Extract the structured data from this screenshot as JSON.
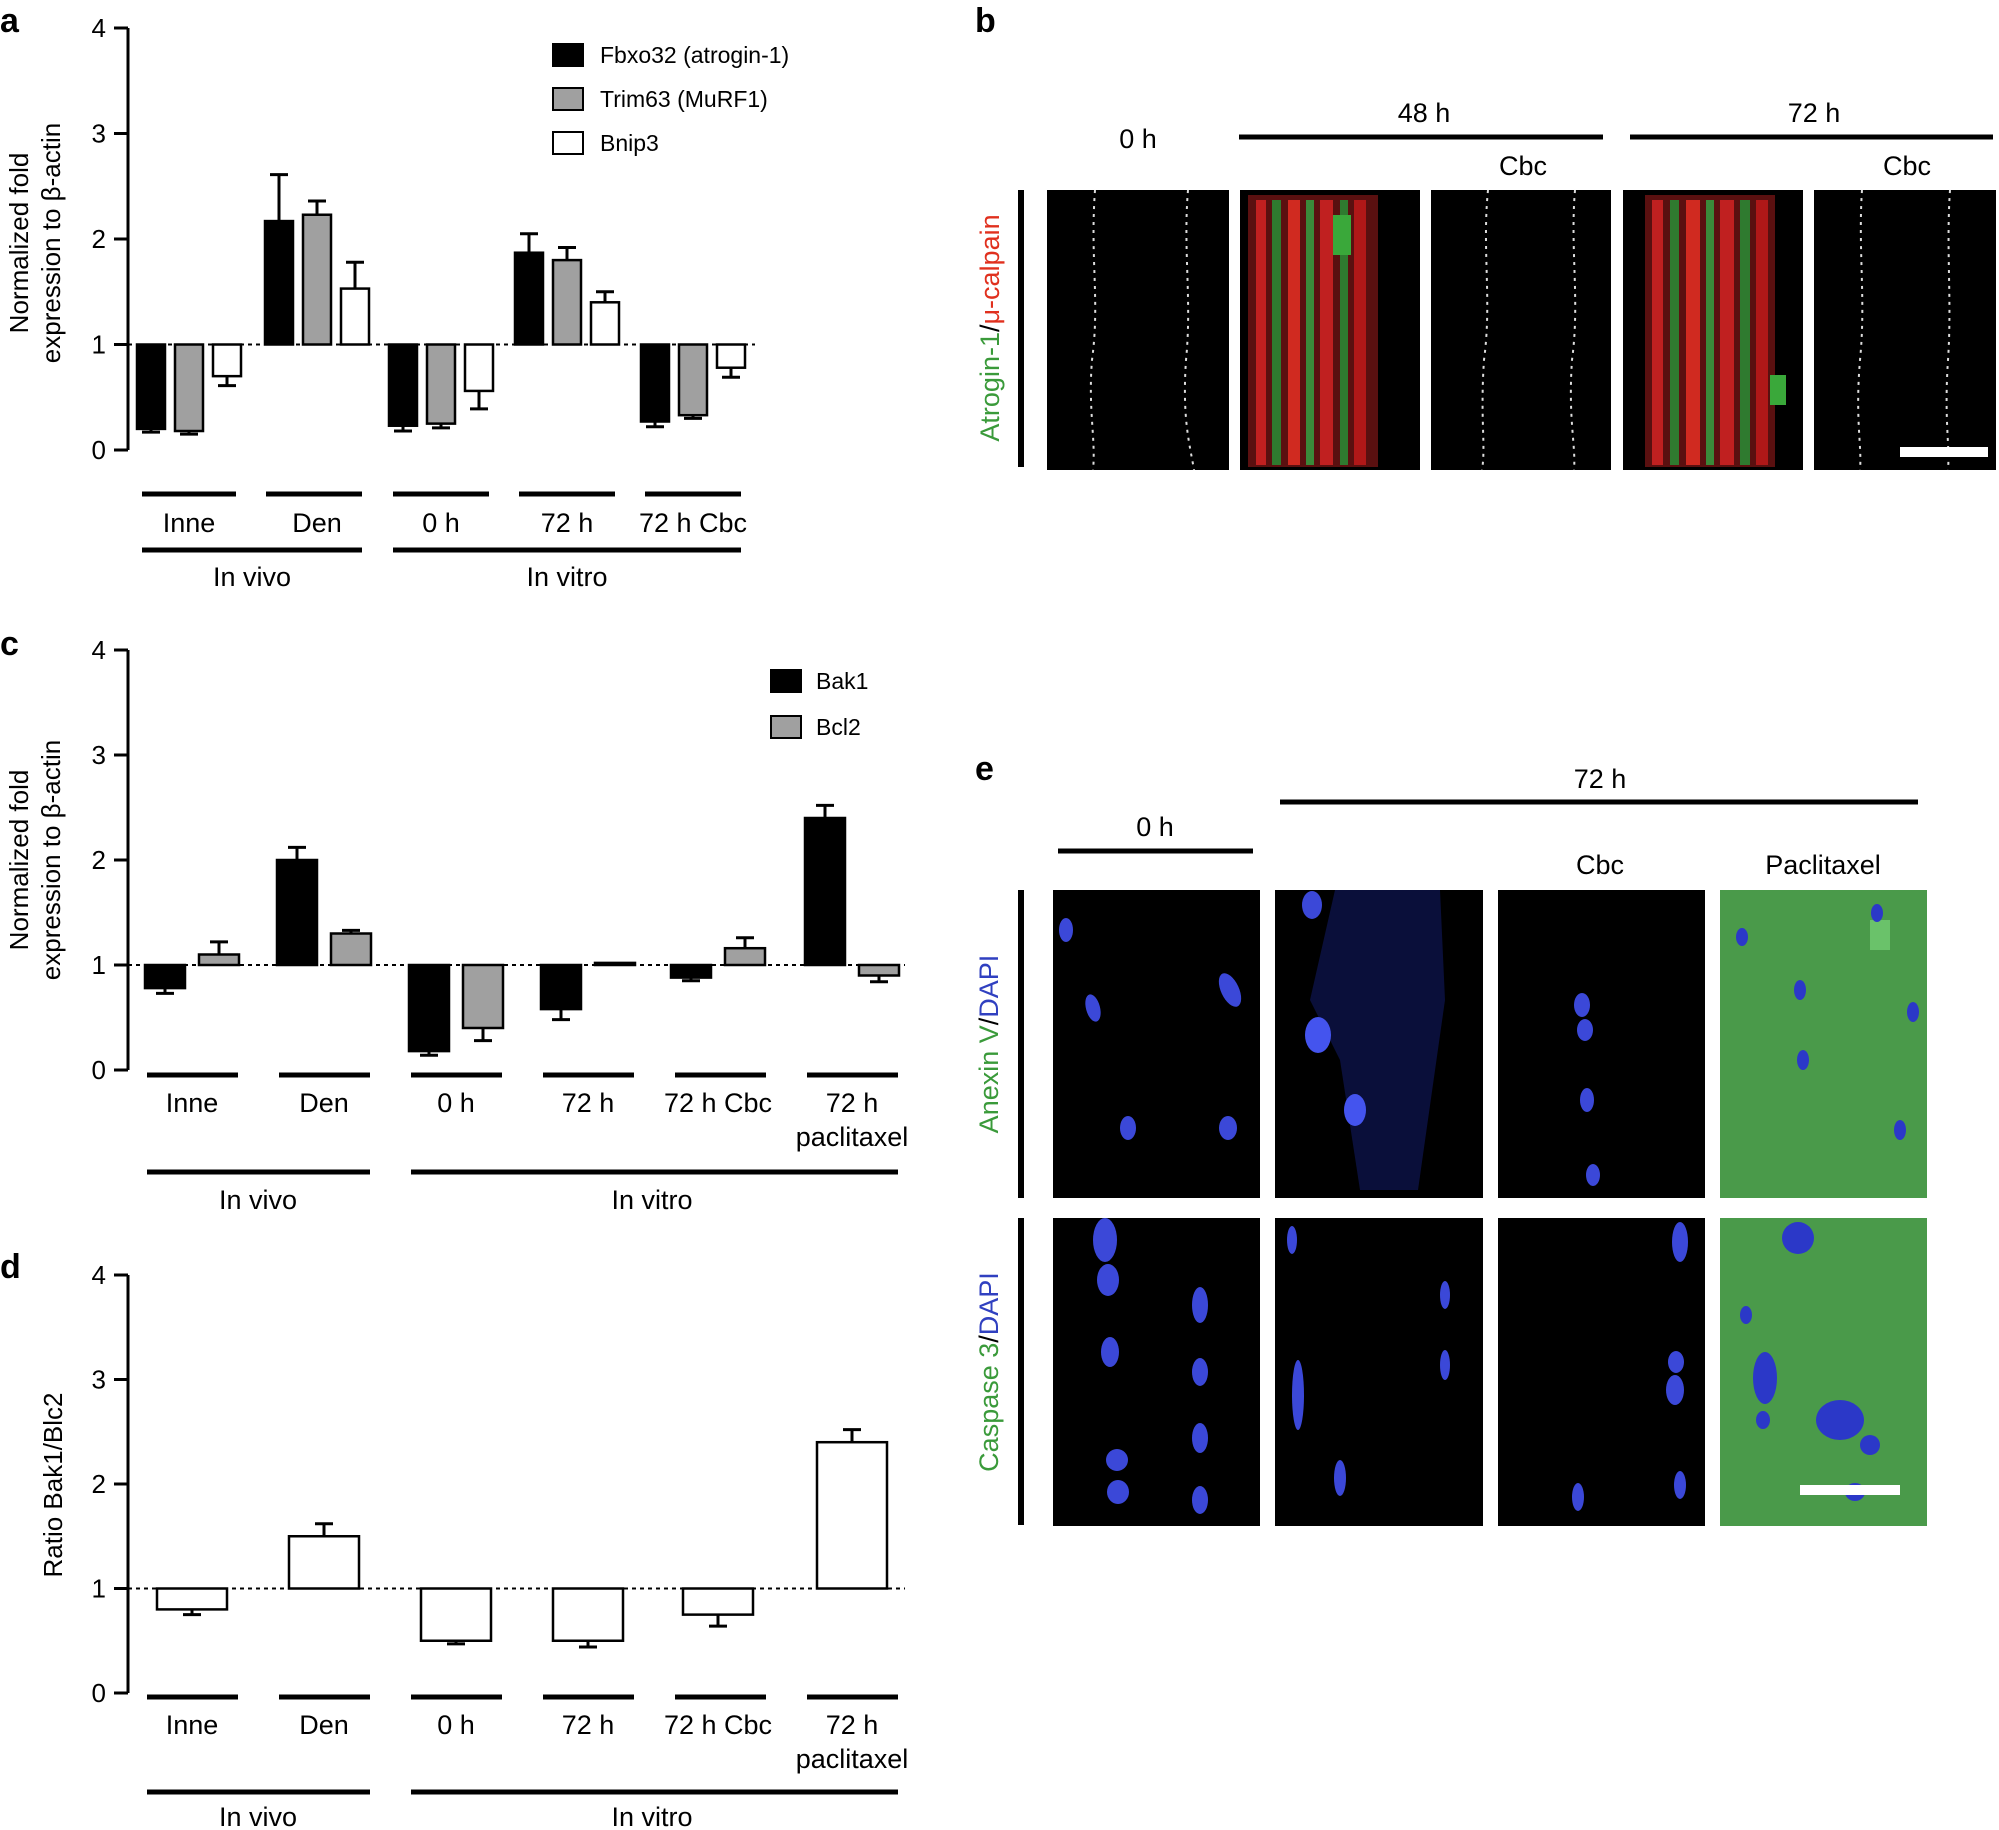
{
  "figure": {
    "panels": [
      {
        "letter": "a",
        "ylabel_lines": [
          "Normalized fold",
          "expression to β-actin"
        ],
        "legend": [
          "Fbxo32 (atrogin-1)",
          "Trim63 (MuRF1)",
          "Bnip3"
        ],
        "groups": [
          "Inne",
          "Den",
          "0 h",
          "72 h",
          "72 h Cbc"
        ],
        "supergroups": [
          "In vivo",
          "In vitro"
        ]
      },
      {
        "letter": "b",
        "top_labels": [
          "0 h",
          "48 h",
          "Cbc",
          "72 h",
          "Cbc"
        ],
        "stain_label": {
          "part1": "Atrogin-1",
          "sep": "/",
          "part2": "μ-calpain"
        }
      },
      {
        "letter": "c",
        "ylabel_lines": [
          "Normalized fold",
          "expression to β-actin"
        ],
        "legend": [
          "Bak1",
          "Bcl2"
        ],
        "groups": [
          "Inne",
          "Den",
          "0 h",
          "72 h",
          "72 h Cbc",
          "72 h",
          "paclitaxel"
        ],
        "supergroups": [
          "In vivo",
          "In vitro"
        ]
      },
      {
        "letter": "d",
        "ylabel": "Ratio Bak1/Blc2",
        "groups": [
          "Inne",
          "Den",
          "0 h",
          "72 h",
          "72 h Cbc",
          "72 h",
          "paclitaxel"
        ],
        "supergroups": [
          "In vivo",
          "In vitro"
        ]
      },
      {
        "letter": "e",
        "top_labels": [
          "72 h",
          "0 h",
          "Cbc",
          "Paclitaxel"
        ],
        "row_labels": [
          {
            "part1": "Anexin V",
            "sep": "/",
            "part2": "DAPI"
          },
          {
            "part1": "Caspase 3",
            "sep": "/",
            "part2": "DAPI"
          }
        ]
      }
    ]
  },
  "colors": {
    "black": "#000000",
    "gray": "#a0a0a0",
    "white": "#ffffff",
    "green": "#3a9a3a",
    "red": "#e0301e",
    "blue": "#3040c0",
    "micro_bg": "#000000",
    "fluor_green": "#4a9a4a"
  },
  "chart_data": [
    {
      "type": "bar",
      "panel": "a",
      "baseline": 1,
      "ylim": [
        0,
        4
      ],
      "yticks": [
        0,
        1,
        2,
        3,
        4
      ],
      "categories": [
        "Inne",
        "Den",
        "0 h",
        "72 h",
        "72 h Cbc"
      ],
      "series": [
        {
          "name": "Fbxo32 (atrogin-1)",
          "values": [
            0.2,
            2.17,
            0.23,
            1.87,
            0.27
          ],
          "errors": [
            0.03,
            0.44,
            0.05,
            0.18,
            0.05
          ],
          "fill": "#000000"
        },
        {
          "name": "Trim63 (MuRF1)",
          "values": [
            0.18,
            2.23,
            0.25,
            1.8,
            0.33
          ],
          "errors": [
            0.03,
            0.13,
            0.04,
            0.12,
            0.03
          ],
          "fill": "#a0a0a0"
        },
        {
          "name": "Bnip3",
          "values": [
            0.7,
            1.53,
            0.56,
            1.4,
            0.78
          ],
          "errors": [
            0.09,
            0.25,
            0.17,
            0.1,
            0.09
          ],
          "fill": "#ffffff"
        }
      ]
    },
    {
      "type": "bar",
      "panel": "c",
      "baseline": 1,
      "ylim": [
        0,
        4
      ],
      "yticks": [
        0,
        1,
        2,
        3,
        4
      ],
      "categories": [
        "Inne",
        "Den",
        "0 h",
        "72 h",
        "72 h Cbc",
        "72 h paclitaxel"
      ],
      "series": [
        {
          "name": "Bak1",
          "values": [
            0.78,
            2.0,
            0.18,
            0.58,
            0.88,
            2.4
          ],
          "errors": [
            0.05,
            0.12,
            0.04,
            0.1,
            0.03,
            0.12
          ],
          "fill": "#000000"
        },
        {
          "name": "Bcl2",
          "values": [
            1.1,
            1.3,
            0.4,
            1.02,
            1.16,
            0.9
          ],
          "errors": [
            0.12,
            0.03,
            0.12,
            0.0,
            0.1,
            0.06
          ],
          "fill": "#a0a0a0"
        }
      ]
    },
    {
      "type": "bar",
      "panel": "d",
      "baseline": 1,
      "ylim": [
        0,
        4
      ],
      "yticks": [
        0,
        1,
        2,
        3,
        4
      ],
      "categories": [
        "Inne",
        "Den",
        "0 h",
        "72 h",
        "72 h Cbc",
        "72 h paclitaxel"
      ],
      "series": [
        {
          "name": "",
          "values": [
            0.8,
            1.5,
            0.5,
            0.5,
            0.75,
            2.4
          ],
          "errors": [
            0.05,
            0.12,
            0.03,
            0.06,
            0.11,
            0.12
          ],
          "fill": "#ffffff"
        }
      ]
    }
  ]
}
